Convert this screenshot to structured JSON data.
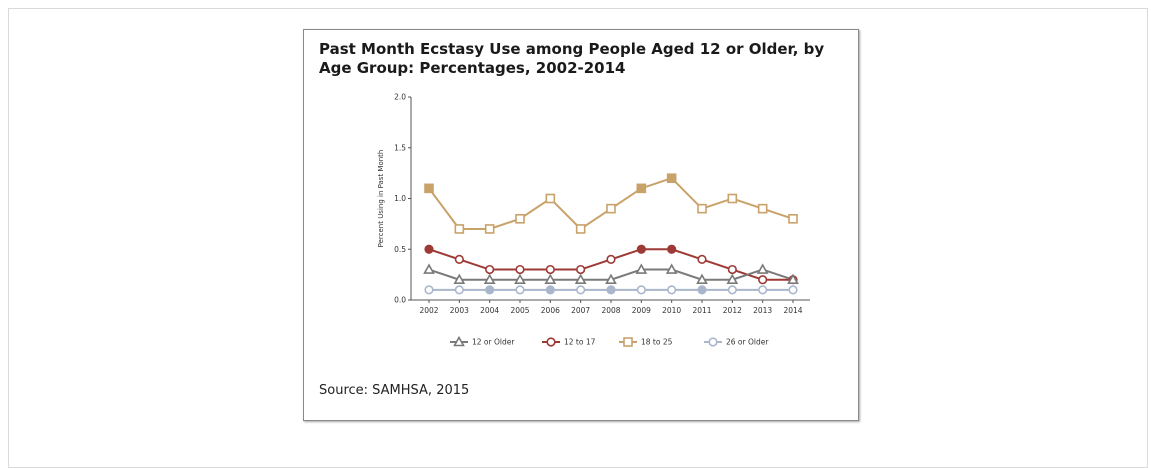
{
  "figure": {
    "title": "Past Month Ecstasy Use among People Aged 12 or Older, by Age Group: Percentages, 2002-2014",
    "source": "Source: SAMHSA, 2015"
  },
  "chart_data": {
    "type": "line",
    "title": "Past Month Ecstasy Use among People Aged 12 or Older, by Age Group: Percentages, 2002-2014",
    "xlabel": "",
    "ylabel": "Percent Using in Past Month",
    "x": [
      "2002",
      "2003",
      "2004",
      "2005",
      "2006",
      "2007",
      "2008",
      "2009",
      "2010",
      "2011",
      "2012",
      "2013",
      "2014"
    ],
    "ylim": [
      0,
      2.0
    ],
    "yticks": [
      "0.0",
      "0.5",
      "1.0",
      "1.5",
      "2.0"
    ],
    "grid": false,
    "legend_position": "bottom",
    "series": [
      {
        "name": "12 or Older",
        "marker": "triangle",
        "color": "#7a7a7a",
        "values": [
          0.3,
          0.2,
          0.2,
          0.2,
          0.2,
          0.2,
          0.2,
          0.3,
          0.3,
          0.2,
          0.2,
          0.3,
          0.2
        ]
      },
      {
        "name": "12 to 17",
        "marker": "circle",
        "color": "#9e3a36",
        "values": [
          0.5,
          0.4,
          0.3,
          0.3,
          0.3,
          0.3,
          0.4,
          0.5,
          0.5,
          0.4,
          0.3,
          0.2,
          0.2
        ]
      },
      {
        "name": "18 to 25",
        "marker": "square",
        "color": "#c9a26a",
        "values": [
          1.1,
          0.7,
          0.7,
          0.8,
          1.0,
          0.7,
          0.9,
          1.1,
          1.2,
          0.9,
          1.0,
          0.9,
          0.8
        ]
      },
      {
        "name": "26 or Older",
        "marker": "circle",
        "color": "#a9b6cc",
        "values": [
          0.1,
          0.1,
          0.1,
          0.1,
          0.1,
          0.1,
          0.1,
          0.1,
          0.1,
          0.1,
          0.1,
          0.1,
          0.1
        ]
      }
    ],
    "highlighted_points": [
      {
        "series": "18 to 25",
        "x": "2002"
      },
      {
        "series": "18 to 25",
        "x": "2009"
      },
      {
        "series": "18 to 25",
        "x": "2010"
      },
      {
        "series": "12 to 17",
        "x": "2002"
      },
      {
        "series": "12 to 17",
        "x": "2009"
      },
      {
        "series": "12 to 17",
        "x": "2010"
      },
      {
        "series": "26 or Older",
        "x": "2004"
      },
      {
        "series": "26 or Older",
        "x": "2006"
      },
      {
        "series": "26 or Older",
        "x": "2008"
      },
      {
        "series": "26 or Older",
        "x": "2011"
      }
    ]
  }
}
